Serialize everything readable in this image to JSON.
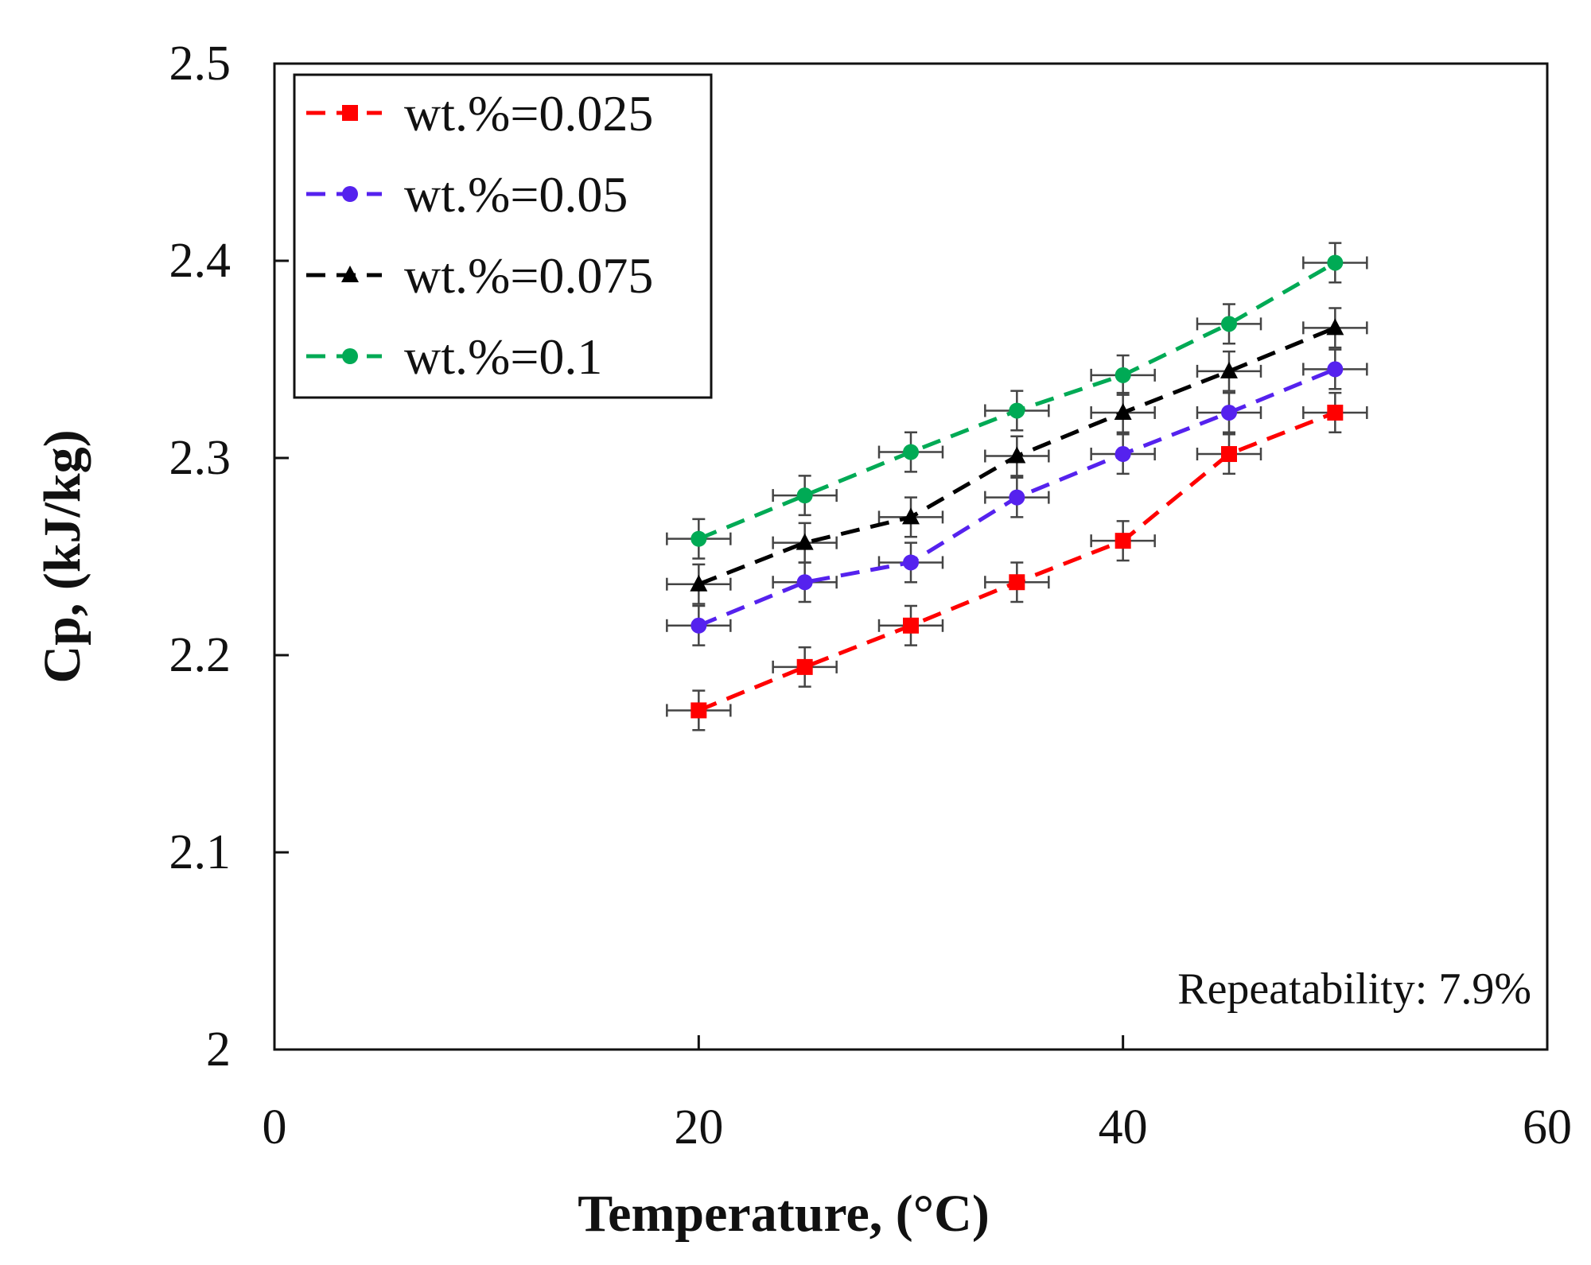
{
  "chart_data": {
    "type": "line",
    "title": "",
    "xlabel": "Temperature, (°C)",
    "ylabel": "Cp, (kJ/kg)",
    "xlim": [
      0,
      60
    ],
    "ylim": [
      2,
      2.5
    ],
    "xticks": [
      0,
      20,
      40,
      60
    ],
    "yticks": [
      2,
      2.1,
      2.2,
      2.3,
      2.4,
      2.5
    ],
    "xtick_labels": [
      "0",
      "20",
      "40",
      "60"
    ],
    "ytick_labels": [
      "2",
      "2.1",
      "2.2",
      "2.3",
      "2.4",
      "2.5"
    ],
    "grid": false,
    "legend_position": "top-left",
    "x": [
      20,
      25,
      30,
      35,
      40,
      45,
      50
    ],
    "x_error": 1.5,
    "y_error": 0.01,
    "series": [
      {
        "name": "wt.%=0.025",
        "marker": "square",
        "color": "#ff0000",
        "values": [
          2.172,
          2.194,
          2.215,
          2.237,
          2.258,
          2.302,
          2.323
        ]
      },
      {
        "name": "wt.%=0.05",
        "marker": "circle",
        "color": "#5522ee",
        "values": [
          2.215,
          2.237,
          2.247,
          2.28,
          2.302,
          2.323,
          2.345
        ]
      },
      {
        "name": "wt.%=0.075",
        "marker": "triangle",
        "color": "#000000",
        "values": [
          2.236,
          2.257,
          2.27,
          2.301,
          2.323,
          2.344,
          2.366
        ]
      },
      {
        "name": "wt.%=0.1",
        "marker": "circle",
        "color": "#00aa55",
        "values": [
          2.259,
          2.281,
          2.303,
          2.324,
          2.342,
          2.368,
          2.399
        ]
      }
    ],
    "annotation": "Repeatability: 7.9%"
  }
}
